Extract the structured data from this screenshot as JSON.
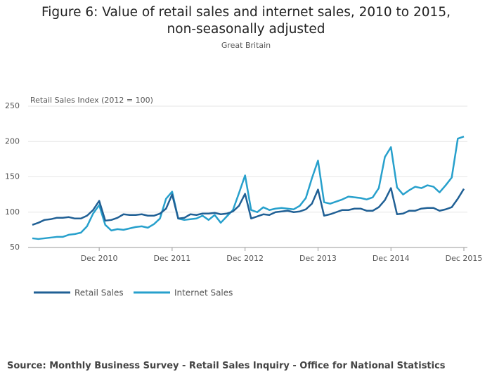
{
  "chart_data": {
    "type": "line",
    "title": "Figure 6: Value of retail sales and internet sales, 2010 to 2015, non-seasonally adjusted",
    "subtitle": "Great Britain",
    "y_label": "Retail Sales Index (2012 = 100)",
    "source": "Source: Monthly Business Survey - Retail Sales Inquiry - Office for National Statistics",
    "x": [
      "Jan 2010",
      "Feb 2010",
      "Mar 2010",
      "Apr 2010",
      "May 2010",
      "Jun 2010",
      "Jul 2010",
      "Aug 2010",
      "Sep 2010",
      "Oct 2010",
      "Nov 2010",
      "Dec 2010",
      "Jan 2011",
      "Feb 2011",
      "Mar 2011",
      "Apr 2011",
      "May 2011",
      "Jun 2011",
      "Jul 2011",
      "Aug 2011",
      "Sep 2011",
      "Oct 2011",
      "Nov 2011",
      "Dec 2011",
      "Jan 2012",
      "Feb 2012",
      "Mar 2012",
      "Apr 2012",
      "May 2012",
      "Jun 2012",
      "Jul 2012",
      "Aug 2012",
      "Sep 2012",
      "Oct 2012",
      "Nov 2012",
      "Dec 2012",
      "Jan 2013",
      "Feb 2013",
      "Mar 2013",
      "Apr 2013",
      "May 2013",
      "Jun 2013",
      "Jul 2013",
      "Aug 2013",
      "Sep 2013",
      "Oct 2013",
      "Nov 2013",
      "Dec 2013",
      "Jan 2014",
      "Feb 2014",
      "Mar 2014",
      "Apr 2014",
      "May 2014",
      "Jun 2014",
      "Jul 2014",
      "Aug 2014",
      "Sep 2014",
      "Oct 2014",
      "Nov 2014",
      "Dec 2014",
      "Jan 2015",
      "Feb 2015",
      "Mar 2015",
      "Apr 2015",
      "May 2015",
      "Jun 2015",
      "Jul 2015",
      "Aug 2015",
      "Sep 2015",
      "Oct 2015",
      "Nov 2015",
      "Dec 2015"
    ],
    "xticks": [
      "Dec 2010",
      "Dec 2011",
      "Dec 2012",
      "Dec 2013",
      "Dec 2014",
      "Dec 2015"
    ],
    "series": [
      {
        "name": "Retail Sales",
        "color": "#206095",
        "values": [
          82,
          85,
          89,
          90,
          92,
          92,
          93,
          91,
          91,
          95,
          103,
          116,
          88,
          89,
          92,
          97,
          96,
          96,
          97,
          95,
          95,
          98,
          105,
          125,
          91,
          92,
          97,
          96,
          98,
          98,
          99,
          97,
          98,
          101,
          109,
          126,
          91,
          94,
          97,
          96,
          100,
          101,
          102,
          100,
          101,
          104,
          112,
          132,
          95,
          97,
          100,
          103,
          103,
          105,
          105,
          102,
          102,
          107,
          117,
          134,
          97,
          98,
          102,
          102,
          105,
          106,
          106,
          102,
          104,
          107,
          119,
          133
        ]
      },
      {
        "name": "Internet Sales",
        "color": "#27a0cc",
        "values": [
          63,
          62,
          63,
          64,
          65,
          65,
          68,
          69,
          71,
          80,
          98,
          110,
          82,
          74,
          76,
          75,
          77,
          79,
          80,
          78,
          83,
          91,
          119,
          129,
          91,
          89,
          90,
          91,
          95,
          89,
          96,
          85,
          94,
          103,
          127,
          152,
          103,
          100,
          107,
          103,
          105,
          106,
          105,
          104,
          109,
          120,
          148,
          173,
          114,
          112,
          115,
          118,
          122,
          121,
          120,
          118,
          121,
          134,
          178,
          192,
          135,
          125,
          131,
          136,
          134,
          138,
          136,
          128,
          138,
          149,
          204,
          207
        ]
      }
    ],
    "ylim": [
      50,
      250
    ],
    "yticks": [
      50,
      100,
      150,
      200,
      250
    ],
    "grid": true
  }
}
